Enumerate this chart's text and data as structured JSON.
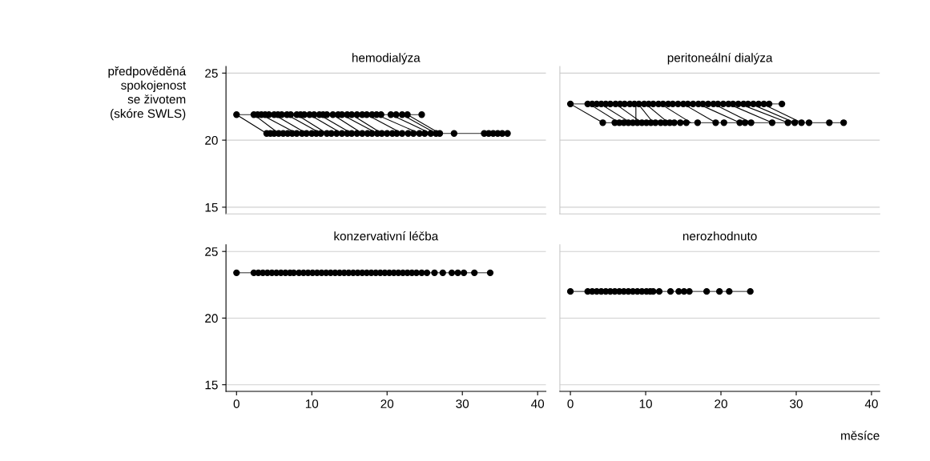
{
  "chart_data": [
    {
      "type": "line",
      "title": "hemodialýza",
      "ylabel": "předpověděná\nspokojenost\nse životem\n(skóre SWLS)",
      "xlim": [
        -1.4,
        41.1
      ],
      "ylim": [
        14.5,
        25.5
      ],
      "xticks": [
        0,
        10,
        20,
        30,
        40
      ],
      "yticks": [
        15,
        20,
        25
      ],
      "grid": "y",
      "tick_labels": "y",
      "line_style": "solid",
      "series": [
        {
          "color": "#000000",
          "marker": "circle",
          "x": [
            0,
            2.3,
            2.8,
            3.3,
            3.8,
            4.3,
            5,
            5.5,
            6,
            6.7,
            7.2,
            8,
            8.5,
            9,
            9.7,
            10.3,
            11,
            11.5,
            12,
            12.8,
            13.5,
            14,
            14.7,
            15.3,
            16,
            16.7,
            17.3,
            18,
            18.6,
            19.2,
            20.5,
            21.2,
            22,
            22.7,
            24.6
          ],
          "values": [
            21.9,
            21.9,
            21.9,
            21.9,
            21.9,
            21.9,
            21.9,
            21.9,
            21.9,
            21.9,
            21.9,
            21.9,
            21.9,
            21.9,
            21.9,
            21.9,
            21.9,
            21.9,
            21.9,
            21.9,
            21.9,
            21.9,
            21.9,
            21.9,
            21.9,
            21.9,
            21.9,
            21.9,
            21.9,
            21.9,
            21.9,
            21.9,
            21.9,
            21.9,
            21.9
          ]
        },
        {
          "color": "#000000",
          "marker": "circle",
          "x": [
            4.0,
            4.5,
            5,
            5.6,
            6.2,
            6.8,
            7.4,
            8,
            8.7,
            9.3,
            10,
            10.6,
            11.2,
            12,
            12.6,
            13.3,
            14,
            14.7,
            15.3,
            16,
            16.7,
            17.4,
            18,
            18.7,
            19.3,
            20,
            20.7,
            21.3,
            22,
            22.8,
            23.5,
            24.3,
            25,
            25.8,
            26.5,
            27.0,
            28.9,
            32.9,
            33.5,
            34.1,
            34.7,
            35.3,
            36.0
          ],
          "values": [
            20.5,
            20.5,
            20.5,
            20.5,
            20.5,
            20.5,
            20.5,
            20.5,
            20.5,
            20.5,
            20.5,
            20.5,
            20.5,
            20.5,
            20.5,
            20.5,
            20.5,
            20.5,
            20.5,
            20.5,
            20.5,
            20.5,
            20.5,
            20.5,
            20.5,
            20.5,
            20.5,
            20.5,
            20.5,
            20.5,
            20.5,
            20.5,
            20.5,
            20.5,
            20.5,
            20.5,
            20.5,
            20.5,
            20.5,
            20.5,
            20.5,
            20.5,
            20.5
          ]
        },
        {
          "color": "#000000",
          "marker": "none",
          "x": [
            0,
            4.0
          ],
          "values": [
            21.9,
            20.5
          ]
        },
        {
          "color": "#000000",
          "marker": "none",
          "x": [
            2.3,
            5.6
          ],
          "values": [
            21.9,
            20.5
          ]
        },
        {
          "color": "#000000",
          "marker": "none",
          "x": [
            3.3,
            8
          ],
          "values": [
            21.9,
            20.5
          ]
        },
        {
          "color": "#000000",
          "marker": "none",
          "x": [
            5,
            9.3
          ],
          "values": [
            21.9,
            20.5
          ]
        },
        {
          "color": "#000000",
          "marker": "none",
          "x": [
            6.7,
            11.2
          ],
          "values": [
            21.9,
            20.5
          ]
        },
        {
          "color": "#000000",
          "marker": "none",
          "x": [
            8,
            12
          ],
          "values": [
            21.9,
            20.5
          ]
        },
        {
          "color": "#000000",
          "marker": "none",
          "x": [
            9.7,
            14
          ],
          "values": [
            21.9,
            20.5
          ]
        },
        {
          "color": "#000000",
          "marker": "none",
          "x": [
            11,
            15.3
          ],
          "values": [
            21.9,
            20.5
          ]
        },
        {
          "color": "#000000",
          "marker": "none",
          "x": [
            12.8,
            16.7
          ],
          "values": [
            21.9,
            20.5
          ]
        },
        {
          "color": "#000000",
          "marker": "none",
          "x": [
            14,
            18.7
          ],
          "values": [
            21.9,
            20.5
          ]
        },
        {
          "color": "#000000",
          "marker": "none",
          "x": [
            15.3,
            19.3
          ],
          "values": [
            21.9,
            20.5
          ]
        },
        {
          "color": "#000000",
          "marker": "none",
          "x": [
            17.3,
            22
          ],
          "values": [
            21.9,
            20.5
          ]
        },
        {
          "color": "#000000",
          "marker": "none",
          "x": [
            18.6,
            24.3
          ],
          "values": [
            21.9,
            20.5
          ]
        },
        {
          "color": "#000000",
          "marker": "none",
          "x": [
            20.5,
            25.8
          ],
          "values": [
            21.9,
            20.5
          ]
        },
        {
          "color": "#000000",
          "marker": "none",
          "x": [
            22,
            26.5
          ],
          "values": [
            21.9,
            20.5
          ]
        },
        {
          "color": "#000000",
          "marker": "none",
          "x": [
            22.7,
            27.0
          ],
          "values": [
            21.9,
            20.5
          ]
        }
      ]
    },
    {
      "type": "line",
      "title": "peritoneální dialýza",
      "xlim": [
        -1.4,
        41.1
      ],
      "ylim": [
        14.5,
        25.5
      ],
      "xticks": [
        0,
        10,
        20,
        30,
        40
      ],
      "yticks": [
        15,
        20,
        25
      ],
      "grid": "y",
      "tick_labels": false,
      "line_style": "solid",
      "series": [
        {
          "color": "#000000",
          "marker": "circle",
          "x": [
            0,
            2.3,
            2.9,
            3.5,
            4.1,
            4.7,
            5.3,
            6,
            6.6,
            7.2,
            7.9,
            8.5,
            9.1,
            9.8,
            10.4,
            11,
            11.7,
            12.3,
            13,
            13.6,
            14.3,
            15,
            15.6,
            16.3,
            17,
            17.6,
            18.3,
            19,
            19.6,
            20.3,
            21,
            21.6,
            22.3,
            23,
            23.6,
            24.3,
            25,
            25.7,
            26.4,
            28.1
          ],
          "values": [
            22.7,
            22.7,
            22.7,
            22.7,
            22.7,
            22.7,
            22.7,
            22.7,
            22.7,
            22.7,
            22.7,
            22.7,
            22.7,
            22.7,
            22.7,
            22.7,
            22.7,
            22.7,
            22.7,
            22.7,
            22.7,
            22.7,
            22.7,
            22.7,
            22.7,
            22.7,
            22.7,
            22.7,
            22.7,
            22.7,
            22.7,
            22.7,
            22.7,
            22.7,
            22.7,
            22.7,
            22.7,
            22.7,
            22.7,
            22.7
          ]
        },
        {
          "color": "#000000",
          "marker": "circle",
          "x": [
            4.3,
            5.9,
            6.5,
            7.1,
            7.7,
            8.3,
            8.9,
            9.5,
            10.1,
            10.7,
            11.3,
            12,
            12.6,
            13.2,
            13.8,
            14.6,
            15.4,
            16.9,
            19.3,
            20.4,
            22.5,
            23.2,
            24,
            26.8,
            28.9,
            29.8,
            30.7,
            31.7,
            34.4,
            36.3
          ],
          "values": [
            21.3,
            21.3,
            21.3,
            21.3,
            21.3,
            21.3,
            21.3,
            21.3,
            21.3,
            21.3,
            21.3,
            21.3,
            21.3,
            21.3,
            21.3,
            21.3,
            21.3,
            21.3,
            21.3,
            21.3,
            21.3,
            21.3,
            21.3,
            21.3,
            21.3,
            21.3,
            21.3,
            21.3,
            21.3,
            21.3
          ]
        },
        {
          "color": "#000000",
          "marker": "none",
          "x": [
            0,
            4.3
          ],
          "values": [
            22.7,
            21.3
          ]
        },
        {
          "color": "#000000",
          "marker": "none",
          "x": [
            2.5,
            6.5
          ],
          "values": [
            22.7,
            21.3
          ]
        },
        {
          "color": "#000000",
          "marker": "none",
          "x": [
            4,
            8
          ],
          "values": [
            22.7,
            21.3
          ]
        },
        {
          "color": "#000000",
          "marker": "none",
          "x": [
            6,
            9.5
          ],
          "values": [
            22.7,
            21.3
          ]
        },
        {
          "color": "#000000",
          "marker": "none",
          "x": [
            8.7,
            8.7
          ],
          "values": [
            22.7,
            21.3
          ]
        },
        {
          "color": "#000000",
          "marker": "none",
          "x": [
            9,
            11
          ],
          "values": [
            22.7,
            21.3
          ]
        },
        {
          "color": "#000000",
          "marker": "none",
          "x": [
            10,
            13
          ],
          "values": [
            22.7,
            21.3
          ]
        },
        {
          "color": "#000000",
          "marker": "none",
          "x": [
            12,
            16
          ],
          "values": [
            22.7,
            21.3
          ]
        },
        {
          "color": "#000000",
          "marker": "none",
          "x": [
            15,
            19.3
          ],
          "values": [
            22.7,
            21.3
          ]
        },
        {
          "color": "#000000",
          "marker": "none",
          "x": [
            17,
            22.5
          ],
          "values": [
            22.7,
            21.3
          ]
        },
        {
          "color": "#000000",
          "marker": "none",
          "x": [
            19,
            24
          ],
          "values": [
            22.7,
            21.3
          ]
        },
        {
          "color": "#000000",
          "marker": "none",
          "x": [
            21,
            26.8
          ],
          "values": [
            22.7,
            21.3
          ]
        },
        {
          "color": "#000000",
          "marker": "none",
          "x": [
            22.5,
            28.9
          ],
          "values": [
            22.7,
            21.3
          ]
        },
        {
          "color": "#000000",
          "marker": "none",
          "x": [
            24,
            29.8
          ],
          "values": [
            22.7,
            21.3
          ]
        },
        {
          "color": "#000000",
          "marker": "none",
          "x": [
            25.5,
            30.7
          ],
          "values": [
            22.7,
            21.3
          ]
        }
      ]
    },
    {
      "type": "line",
      "title": "konzervativní léčba",
      "xlim": [
        -1.4,
        41.1
      ],
      "ylim": [
        14.5,
        25.5
      ],
      "xticks": [
        0,
        10,
        20,
        30,
        40
      ],
      "yticks": [
        15,
        20,
        25
      ],
      "grid": "y",
      "line_style": "solid",
      "series": [
        {
          "color": "#000000",
          "marker": "circle",
          "x": [
            0,
            2.3,
            2.9,
            3.5,
            4.1,
            4.7,
            5.3,
            5.9,
            6.5,
            7.1,
            7.6,
            8.3,
            8.9,
            9.5,
            10.1,
            10.7,
            11.3,
            11.9,
            12.5,
            13.1,
            13.7,
            14.3,
            14.9,
            15.5,
            16.1,
            16.7,
            17.3,
            17.9,
            18.5,
            19.1,
            19.7,
            20.3,
            20.9,
            21.5,
            22.1,
            22.7,
            23.3,
            23.9,
            24.6,
            25.3,
            26.3,
            27.4,
            28.6,
            29.4,
            30.2,
            31.6,
            33.7
          ],
          "values": [
            23.4,
            23.4,
            23.4,
            23.4,
            23.4,
            23.4,
            23.4,
            23.4,
            23.4,
            23.4,
            23.4,
            23.4,
            23.4,
            23.4,
            23.4,
            23.4,
            23.4,
            23.4,
            23.4,
            23.4,
            23.4,
            23.4,
            23.4,
            23.4,
            23.4,
            23.4,
            23.4,
            23.4,
            23.4,
            23.4,
            23.4,
            23.4,
            23.4,
            23.4,
            23.4,
            23.4,
            23.4,
            23.4,
            23.4,
            23.4,
            23.4,
            23.4,
            23.4,
            23.4,
            23.4,
            23.4,
            23.4
          ]
        }
      ]
    },
    {
      "type": "line",
      "title": "nerozhodnuto",
      "xlabel": "měsíce",
      "xlim": [
        -1.4,
        41.1
      ],
      "ylim": [
        14.5,
        25.5
      ],
      "xticks": [
        0,
        10,
        20,
        30,
        40
      ],
      "yticks": [
        15,
        20,
        25
      ],
      "grid": "y",
      "tick_labels": "x",
      "line_style": "solid",
      "series": [
        {
          "color": "#000000",
          "marker": "circle",
          "x": [
            0,
            2.3,
            2.9,
            3.5,
            4.1,
            4.7,
            5.3,
            5.9,
            6.5,
            7.1,
            7.7,
            8.3,
            8.9,
            9.5,
            10.1,
            10.6,
            11.0,
            11.8,
            13.3,
            14.4,
            15.1,
            15.8,
            18.1,
            19.8,
            21.1,
            23.9
          ],
          "values": [
            22.0,
            22.0,
            22.0,
            22.0,
            22.0,
            22.0,
            22.0,
            22.0,
            22.0,
            22.0,
            22.0,
            22.0,
            22.0,
            22.0,
            22.0,
            22.0,
            22.0,
            22.0,
            22.0,
            22.0,
            22.0,
            22.0,
            22.0,
            22.0,
            22.0,
            22.0
          ]
        }
      ]
    }
  ]
}
